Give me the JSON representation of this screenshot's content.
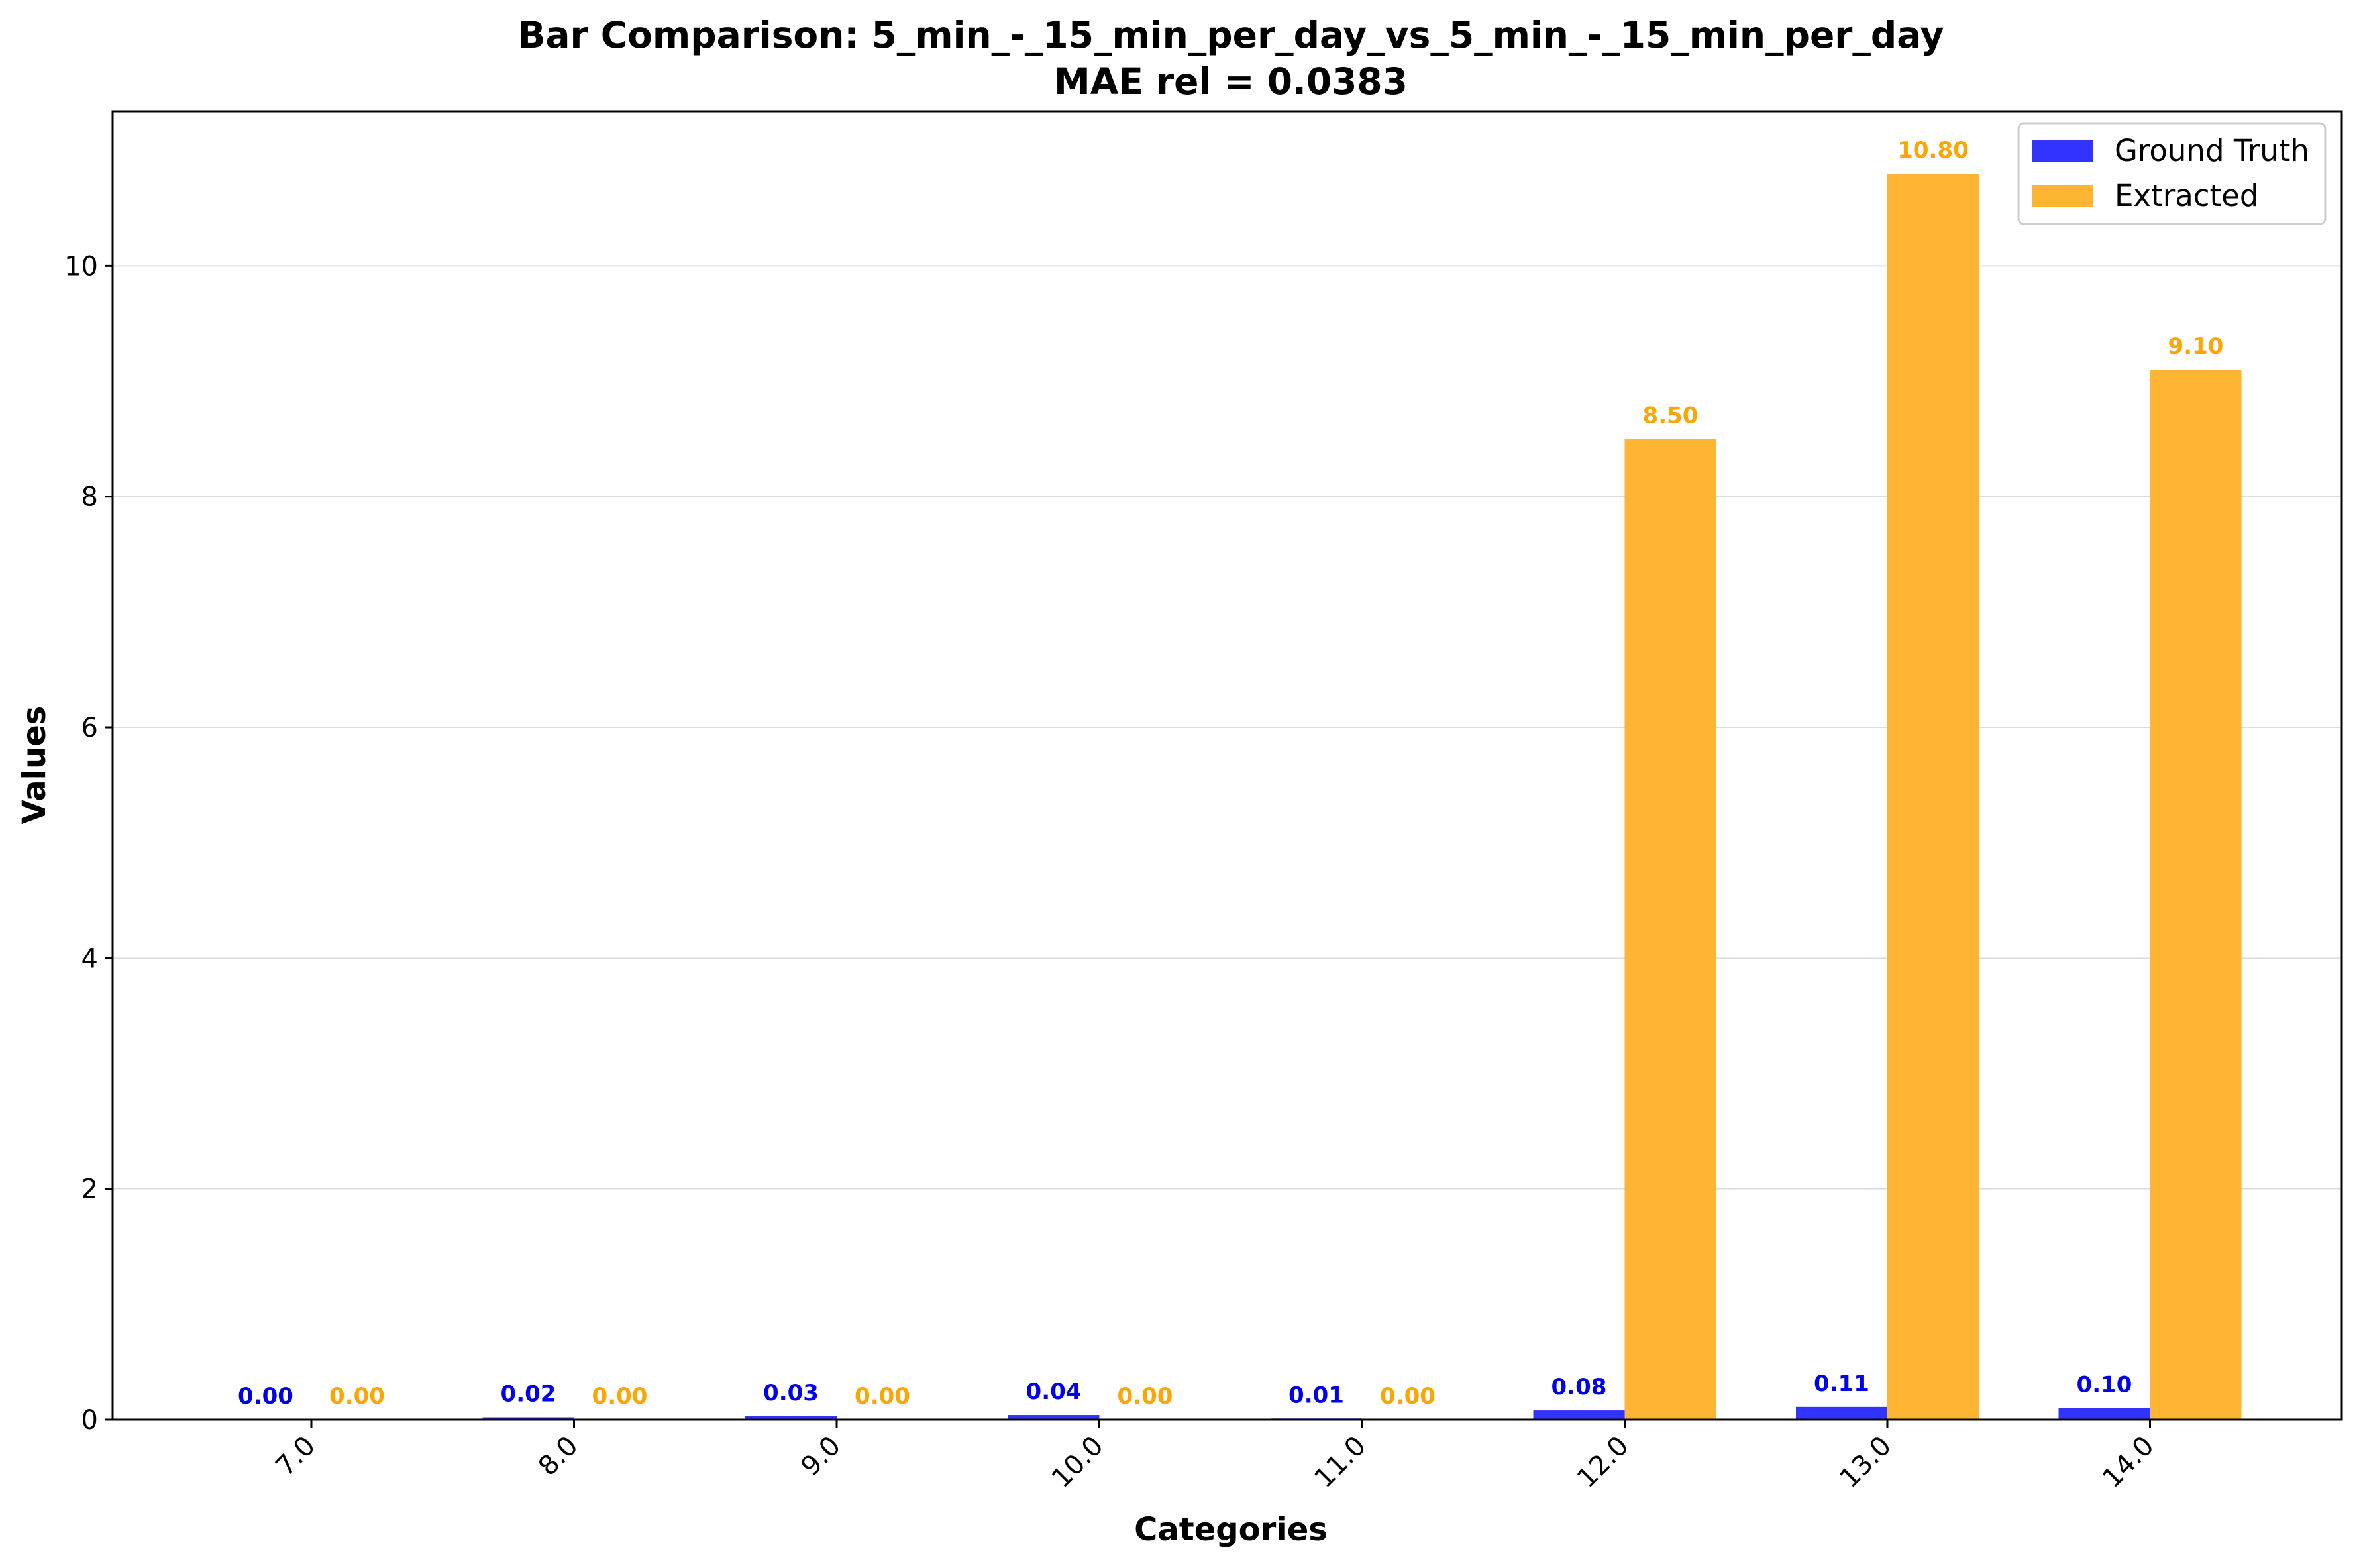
{
  "chart_data": {
    "type": "bar",
    "title": "Bar Comparison: 5_min_-_15_min_per_day_vs_5_min_-_15_min_per_day",
    "subtitle": "MAE rel = 0.0383",
    "xlabel": "Categories",
    "ylabel": "Values",
    "categories": [
      "7.0",
      "8.0",
      "9.0",
      "10.0",
      "11.0",
      "12.0",
      "13.0",
      "14.0"
    ],
    "series": [
      {
        "name": "Ground Truth",
        "color": "#3333ff",
        "label_color": "#0000ee",
        "values": [
          0.0,
          0.02,
          0.03,
          0.04,
          0.01,
          0.08,
          0.11,
          0.1
        ],
        "labels": [
          "0.00",
          "0.02",
          "0.03",
          "0.04",
          "0.01",
          "0.08",
          "0.11",
          "0.10"
        ]
      },
      {
        "name": "Extracted",
        "color": "#ffb534",
        "label_color": "#ffa500",
        "values": [
          0.0,
          0.0,
          0.0,
          0.0,
          0.0,
          8.5,
          10.8,
          9.1
        ],
        "labels": [
          "0.00",
          "0.00",
          "0.00",
          "0.00",
          "0.00",
          "8.50",
          "10.80",
          "9.10"
        ]
      }
    ],
    "ylim": [
      0,
      11.34
    ],
    "yticks": [
      0,
      2,
      4,
      6,
      8,
      10
    ],
    "ytick_labels": [
      "0",
      "2",
      "4",
      "6",
      "8",
      "10"
    ],
    "grid": "y",
    "legend": "top-right"
  }
}
